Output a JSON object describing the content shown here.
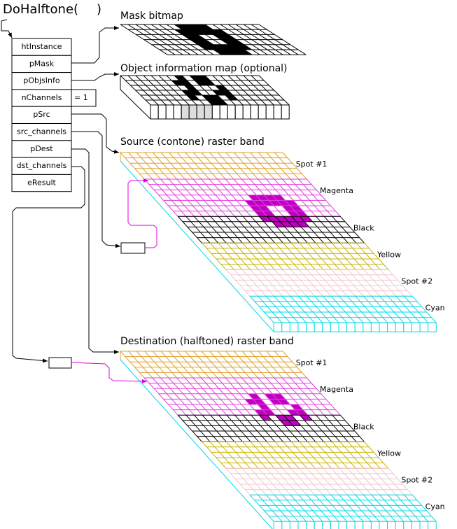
{
  "function": {
    "name": "DoHalftone(",
    "close": ")"
  },
  "fields": [
    "htInstance",
    "pMask",
    "pObjsInfo",
    "nChannels",
    "pSrc",
    "src_channels",
    "pDest",
    "dst_channels",
    "eResult"
  ],
  "nchannels_value": "= 1",
  "mask": {
    "title": "Mask bitmap"
  },
  "object_map": {
    "title": "Object information map (optional)"
  },
  "source": {
    "title": "Source (contone) raster band",
    "planes": [
      {
        "label": "Spot #1",
        "color": "#e0a030"
      },
      {
        "label": "Magenta",
        "color": "#e040e0"
      },
      {
        "label": "Black",
        "color": "#000000"
      },
      {
        "label": "Yellow",
        "color": "#c8b400"
      },
      {
        "label": "Spot #2",
        "color": "#f0c8d0"
      },
      {
        "label": "Cyan",
        "color": "#00d8e8"
      }
    ]
  },
  "destination": {
    "title": "Destination (halftoned) raster band",
    "planes": [
      {
        "label": "Spot #1",
        "color": "#e0a030"
      },
      {
        "label": "Magenta",
        "color": "#e040e0"
      },
      {
        "label": "Black",
        "color": "#000000"
      },
      {
        "label": "Yellow",
        "color": "#c8b400"
      },
      {
        "label": "Spot #2",
        "color": "#f0c8d0"
      },
      {
        "label": "Cyan",
        "color": "#00d8e8"
      }
    ]
  }
}
